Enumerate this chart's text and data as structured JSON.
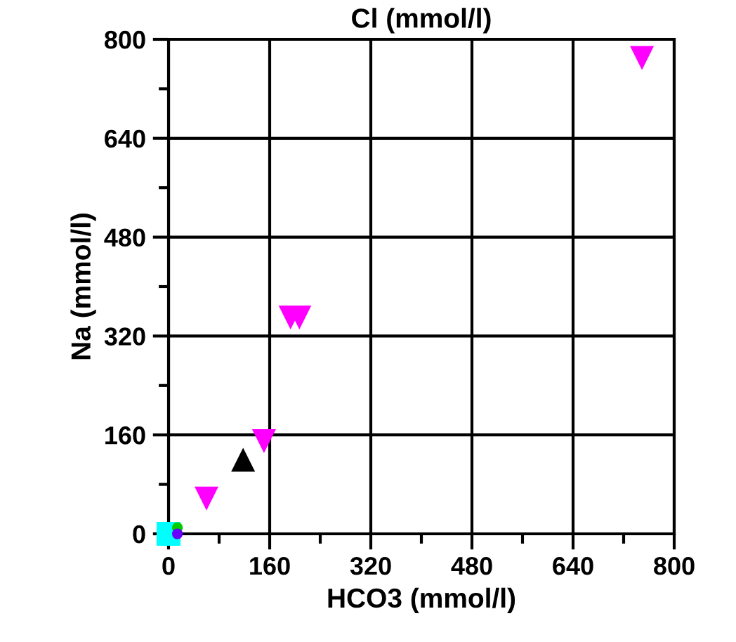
{
  "chart_data": {
    "type": "scatter",
    "title": "Cl (mmol/l)",
    "xlabel": "HCO3 (mmol/l)",
    "ylabel": "Na (mmol/l)",
    "xlim": [
      0,
      800
    ],
    "ylim": [
      0,
      800
    ],
    "xticks": [
      0,
      {
        "value": 80,
        "label": null
      },
      160,
      {
        "value": 240,
        "label": null
      },
      320,
      {
        "value": 400,
        "label": null
      },
      480,
      {
        "value": 560,
        "label": null
      },
      640,
      {
        "value": 720,
        "label": null
      },
      800
    ],
    "yticks": [
      0,
      {
        "value": 80,
        "label": null
      },
      160,
      {
        "value": 240,
        "label": null
      },
      320,
      {
        "value": 400,
        "label": null
      },
      480,
      {
        "value": 560,
        "label": null
      },
      640,
      {
        "value": 720,
        "label": null
      },
      800
    ],
    "grid": true,
    "legend": false,
    "series": [
      {
        "color": "#ff00ff",
        "marker": "triangle_down",
        "x": [
          749,
          193,
          207,
          151,
          60
        ],
        "values": [
          770,
          350,
          350,
          150,
          57
        ]
      },
      {
        "color": "#000000",
        "marker": "triangle",
        "x": [
          118
        ],
        "values": [
          120
        ]
      },
      {
        "color": "#00ffff",
        "marker": "square",
        "x": [
          0
        ],
        "values": [
          0
        ]
      },
      {
        "color": "#00cc00",
        "marker": "circle",
        "x": [
          14
        ],
        "values": [
          10
        ]
      },
      {
        "color": "#6600ff",
        "marker": "circle",
        "x": [
          14
        ],
        "values": [
          0
        ]
      }
    ]
  }
}
